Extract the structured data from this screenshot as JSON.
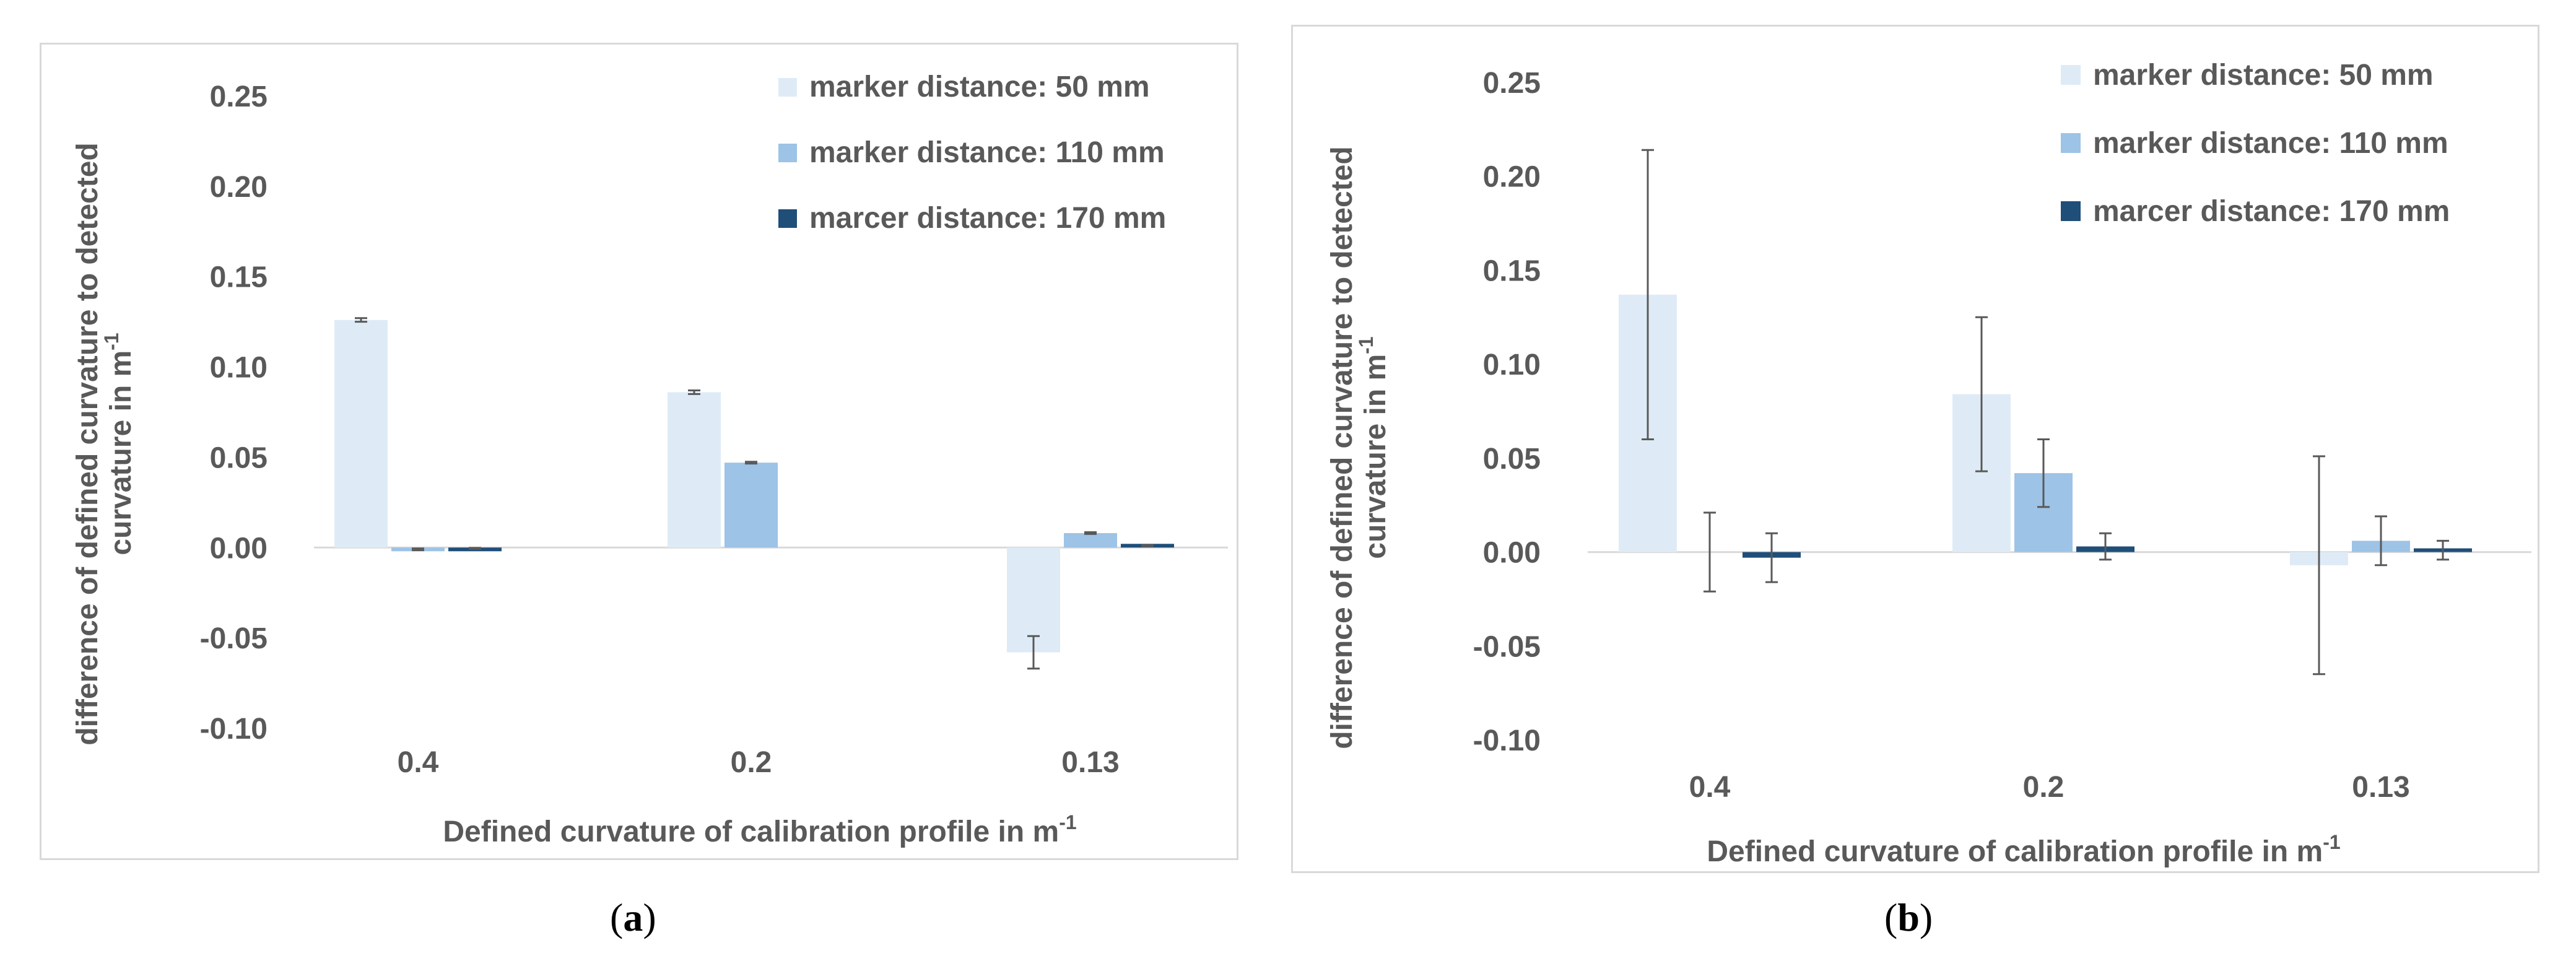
{
  "chart_data": [
    {
      "type": "bar",
      "panel": "a",
      "categories": [
        "0.4",
        "0.2",
        "0.13"
      ],
      "series": [
        {
          "name": "marker distance: 50 mm",
          "color": "#deebf7",
          "values": [
            0.126,
            0.086,
            -0.058
          ],
          "errors": [
            0.001,
            0.001,
            0.009
          ]
        },
        {
          "name": "marker distance: 110 mm",
          "color": "#9dc3e6",
          "values": [
            -0.001,
            0.047,
            0.008
          ],
          "errors": [
            0.0005,
            0.0005,
            0.0005
          ]
        },
        {
          "name": "marcer distance: 170 mm",
          "color": "#1f4e79",
          "values": [
            -0.0005,
            0.0,
            0.001
          ],
          "errors": [
            0.0003,
            0.0,
            0.0003
          ]
        }
      ],
      "ylabel_line1": "difference of defined curvature to detected",
      "ylabel_line2": "curvature in m",
      "ylabel_sup": "-1",
      "xlabel": "Defined curvature of calibration profile in m",
      "xlabel_sup": "-1",
      "ylim": [
        -0.1,
        0.25
      ],
      "yticks": [
        0.25,
        0.2,
        0.15,
        0.1,
        0.05,
        0.0,
        -0.05,
        -0.1
      ],
      "ytick_labels": [
        "0.25",
        "0.20",
        "0.15",
        "0.10",
        "0.05",
        "0.00",
        "-0.05",
        "-0.10"
      ],
      "legend": "top-right",
      "grid": false
    },
    {
      "type": "bar",
      "panel": "b",
      "categories": [
        "0.4",
        "0.2",
        "0.13"
      ],
      "series": [
        {
          "name": "marker distance: 50 mm",
          "color": "#deebf7",
          "values": [
            0.137,
            0.084,
            -0.007
          ],
          "errors": [
            0.077,
            0.041,
            0.058
          ]
        },
        {
          "name": "marker distance: 110 mm",
          "color": "#9dc3e6",
          "values": [
            0.0,
            0.042,
            0.006
          ],
          "errors": [
            0.021,
            0.018,
            0.013
          ]
        },
        {
          "name": "marcer distance: 170 mm",
          "color": "#1f4e79",
          "values": [
            -0.003,
            0.003,
            0.001
          ],
          "errors": [
            0.013,
            0.007,
            0.005
          ]
        }
      ],
      "ylabel_line1": "difference of defined curvature to detected",
      "ylabel_line2": "curvature  in m",
      "ylabel_sup": "-1",
      "xlabel": "Defined curvature of calibration profile in m",
      "xlabel_sup": "-1",
      "ylim": [
        -0.1,
        0.25
      ],
      "yticks": [
        0.25,
        0.2,
        0.15,
        0.1,
        0.05,
        0.0,
        -0.05,
        -0.1
      ],
      "ytick_labels": [
        "0.25",
        "0.20",
        "0.15",
        "0.10",
        "0.05",
        "0.00",
        "-0.05",
        "-0.10"
      ],
      "legend": "top-right",
      "grid": false
    }
  ],
  "captions": {
    "a": "(a)",
    "a_letter": "a",
    "b": "(b)",
    "b_letter": "b"
  }
}
